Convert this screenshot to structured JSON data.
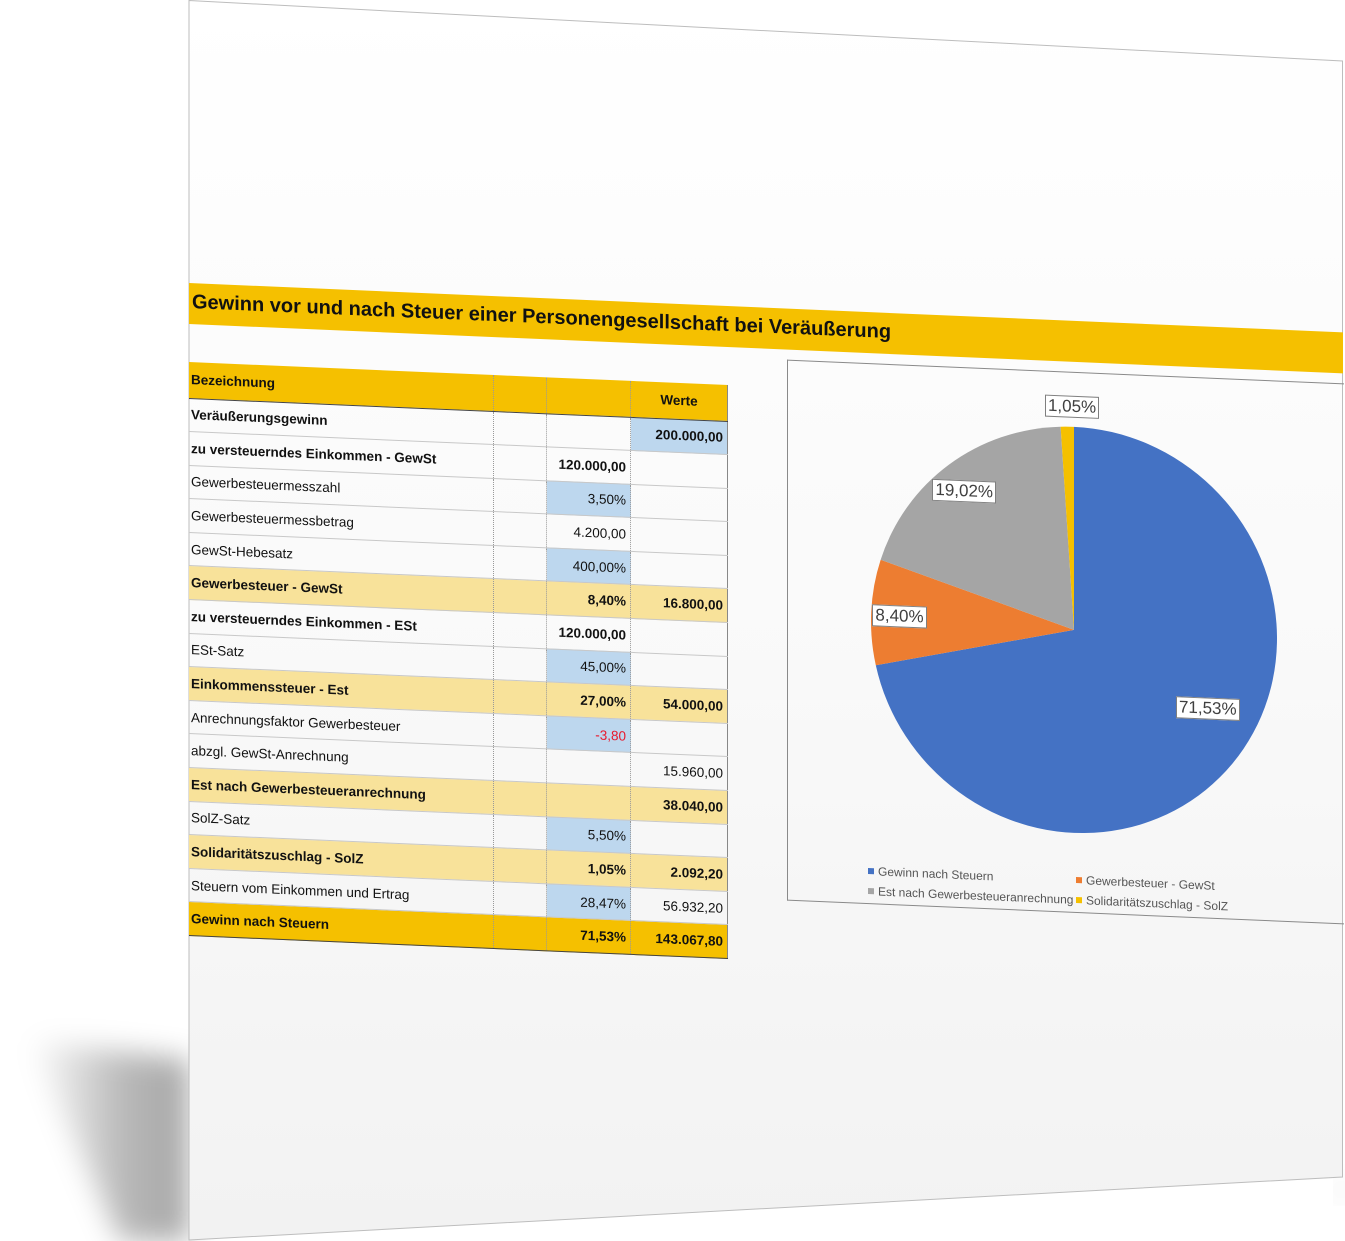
{
  "title": "Gewinn vor und nach Steuer einer Personengesellschaft bei Veräußerung",
  "table": {
    "header": {
      "label": "Bezeichnung",
      "col2": "",
      "col3": "",
      "col4": "Werte"
    },
    "rows": [
      {
        "label": "Veräußerungsgewinn",
        "col3": "",
        "col4": "200.000,00",
        "style": "bold",
        "col4_input": true
      },
      {
        "label": "zu versteuerndes Einkommen - GewSt",
        "col3": "120.000,00",
        "col4": "",
        "style": "bold"
      },
      {
        "label": "Gewerbesteuermesszahl",
        "col3": "3,50%",
        "col4": "",
        "style": "plain",
        "col3_input": true
      },
      {
        "label": "Gewerbesteuermessbetrag",
        "col3": "4.200,00",
        "col4": "",
        "style": "plain"
      },
      {
        "label": "GewSt-Hebesatz",
        "col3": "400,00%",
        "col4": "",
        "style": "plain",
        "col3_input": true
      },
      {
        "label": "Gewerbesteuer - GewSt",
        "col3": "8,40%",
        "col4": "16.800,00",
        "style": "sub"
      },
      {
        "label": "zu versteuerndes Einkommen - ESt",
        "col3": "120.000,00",
        "col4": "",
        "style": "bold"
      },
      {
        "label": "ESt-Satz",
        "col3": "45,00%",
        "col4": "",
        "style": "plain",
        "col3_input": true
      },
      {
        "label": "Einkommenssteuer - Est",
        "col3": "27,00%",
        "col4": "54.000,00",
        "style": "sub"
      },
      {
        "label": "Anrechnungsfaktor Gewerbesteuer",
        "col3": "-3,80",
        "col4": "",
        "style": "plain",
        "col3_input": true,
        "col3_negative": true
      },
      {
        "label": "abzgl. GewSt-Anrechnung",
        "col3": "",
        "col4": "15.960,00",
        "style": "plain"
      },
      {
        "label": "Est nach Gewerbesteueranrechnung",
        "col3": "",
        "col4": "38.040,00",
        "style": "sub"
      },
      {
        "label": "SolZ-Satz",
        "col3": "5,50%",
        "col4": "",
        "style": "plain",
        "col3_input": true
      },
      {
        "label": "Solidaritätszuschlag - SolZ",
        "col3": "1,05%",
        "col4": "2.092,20",
        "style": "sub"
      },
      {
        "label": "Steuern vom Einkommen und Ertrag",
        "col3": "28,47%",
        "col4": "56.932,20",
        "style": "plain",
        "col3_input": true
      },
      {
        "label": "Gewinn nach Steuern",
        "col3": "71,53%",
        "col4": "143.067,80",
        "style": "total"
      }
    ]
  },
  "chart_data": {
    "type": "pie",
    "title": "",
    "slices": [
      {
        "name": "Gewinn nach Steuern",
        "value": 71.53,
        "label": "71,53%",
        "color": "#4472c4"
      },
      {
        "name": "Gewerbesteuer - GewSt",
        "value": 8.4,
        "label": "8,40%",
        "color": "#ed7d31"
      },
      {
        "name": "Est nach Gewerbesteueranrechnung",
        "value": 19.02,
        "label": "19,02%",
        "color": "#a5a5a5"
      },
      {
        "name": "Solidaritätszuschlag - SolZ",
        "value": 1.05,
        "label": "1,05%",
        "color": "#f5c000"
      }
    ],
    "legend": "bottom",
    "start_angle_deg": 0,
    "direction": "clockwise"
  },
  "colors": {
    "accent": "#f5c000",
    "subtotal_fill": "#f8e29a",
    "input_fill": "#bdd7ee",
    "negative_text": "#e8182c"
  }
}
